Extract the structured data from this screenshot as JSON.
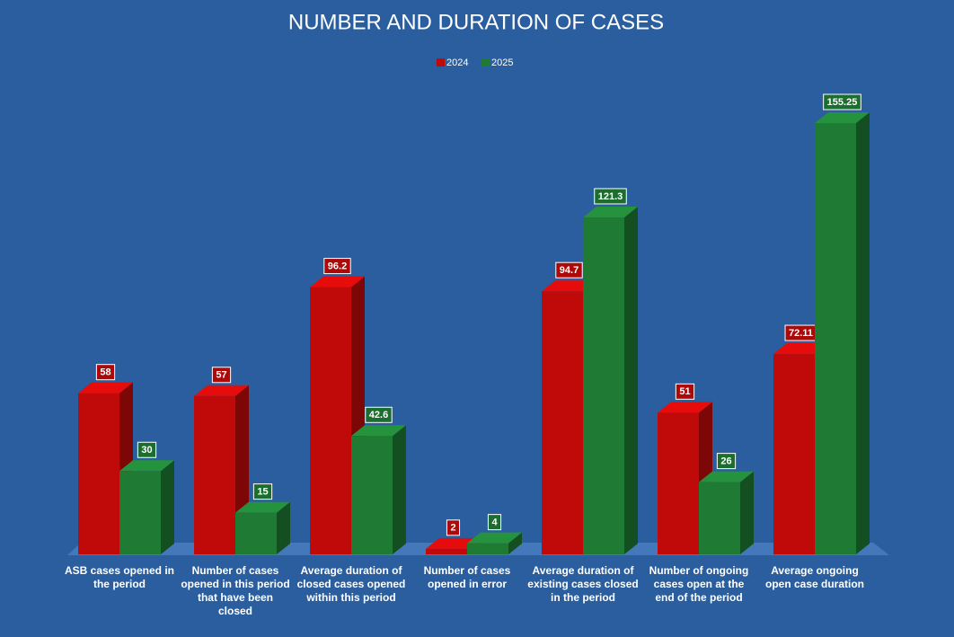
{
  "chart_data": {
    "type": "bar3d",
    "title": "NUMBER AND DURATION OF CASES",
    "categories": [
      "ASB cases opened in the period",
      "Number of cases opened in this period that have been closed",
      "Average duration of closed cases opened within this period",
      "Number of cases opened in error",
      "Average duration of existing cases closed in the period",
      "Number of ongoing cases open at the end of the period",
      "Average ongoing open case duration"
    ],
    "series": [
      {
        "name": "2024",
        "color": "#c00a0a",
        "values": [
          58,
          57,
          96.2,
          2,
          94.7,
          51,
          72.11
        ]
      },
      {
        "name": "2025",
        "color": "#1f7a33",
        "values": [
          30,
          15,
          42.6,
          4,
          121.3,
          26,
          155.25
        ]
      }
    ],
    "legend": "top"
  }
}
